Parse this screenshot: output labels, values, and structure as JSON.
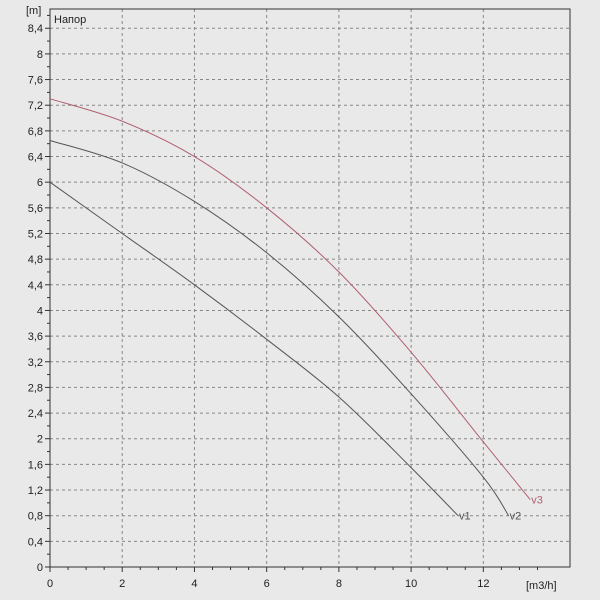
{
  "chart_data": {
    "type": "line",
    "title": "Напор",
    "xlabel": "[m3/h]",
    "ylabel": "[m]",
    "xlim": [
      0,
      14.4
    ],
    "ylim": [
      0,
      8.7
    ],
    "x_ticks": [
      0,
      2,
      4,
      6,
      8,
      10,
      12
    ],
    "y_ticks": [
      0,
      0.4,
      0.8,
      1.2,
      1.6,
      2,
      2.4,
      2.8,
      3.2,
      3.6,
      4,
      4.4,
      4.8,
      5.2,
      5.6,
      6,
      6.4,
      6.8,
      7.2,
      7.6,
      8,
      8.4
    ],
    "y_tick_labels": [
      "0",
      "0,4",
      "0,8",
      "1,2",
      "1,6",
      "2",
      "2,4",
      "2,8",
      "3,2",
      "3,6",
      "4",
      "4,4",
      "4,8",
      "5,2",
      "5,6",
      "6",
      "6,4",
      "6,8",
      "7,2",
      "7,6",
      "8",
      "8,4"
    ],
    "grid": true,
    "series": [
      {
        "name": "v1",
        "color": "#555555",
        "x": [
          0,
          2,
          4,
          6,
          8,
          10,
          11.3
        ],
        "y": [
          6.0,
          5.2,
          4.4,
          3.55,
          2.65,
          1.55,
          0.8
        ]
      },
      {
        "name": "v2",
        "color": "#555555",
        "x": [
          0,
          2,
          4,
          6,
          8,
          10,
          12,
          12.7
        ],
        "y": [
          6.65,
          6.3,
          5.7,
          4.9,
          3.9,
          2.7,
          1.4,
          0.8
        ]
      },
      {
        "name": "v3",
        "color": "#b06070",
        "x": [
          0,
          2,
          4,
          6,
          8,
          10,
          12,
          13.3
        ],
        "y": [
          7.3,
          6.95,
          6.4,
          5.6,
          4.6,
          3.35,
          1.95,
          1.05
        ]
      }
    ]
  }
}
